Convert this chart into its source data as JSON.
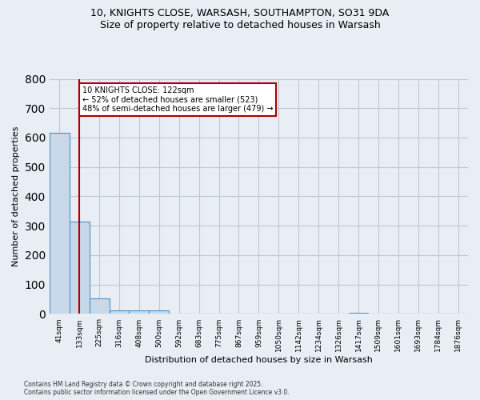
{
  "title_line1": "10, KNIGHTS CLOSE, WARSASH, SOUTHAMPTON, SO31 9DA",
  "title_line2": "Size of property relative to detached houses in Warsash",
  "xlabel": "Distribution of detached houses by size in Warsash",
  "ylabel": "Number of detached properties",
  "bin_labels": [
    "41sqm",
    "133sqm",
    "225sqm",
    "316sqm",
    "408sqm",
    "500sqm",
    "592sqm",
    "683sqm",
    "775sqm",
    "867sqm",
    "959sqm",
    "1050sqm",
    "1142sqm",
    "1234sqm",
    "1326sqm",
    "1417sqm",
    "1509sqm",
    "1601sqm",
    "1693sqm",
    "1784sqm",
    "1876sqm"
  ],
  "bar_heights": [
    617,
    315,
    52,
    12,
    12,
    12,
    0,
    0,
    0,
    0,
    0,
    0,
    0,
    0,
    0,
    5,
    0,
    0,
    0,
    0,
    0
  ],
  "bar_color": "#c8d8e8",
  "bar_edge_color": "#4a90c8",
  "vline_x": 1,
  "vline_color": "#aa0000",
  "ylim": [
    0,
    800
  ],
  "yticks": [
    0,
    100,
    200,
    300,
    400,
    500,
    600,
    700,
    800
  ],
  "annotation_text": "10 KNIGHTS CLOSE: 122sqm\n← 52% of detached houses are smaller (523)\n48% of semi-detached houses are larger (479) →",
  "annotation_box_color": "#ffffff",
  "annotation_box_edge": "#aa0000",
  "grid_color": "#c0c8d0",
  "background_color": "#e8eef4",
  "footer_line1": "Contains HM Land Registry data © Crown copyright and database right 2025.",
  "footer_line2": "Contains public sector information licensed under the Open Government Licence v3.0."
}
